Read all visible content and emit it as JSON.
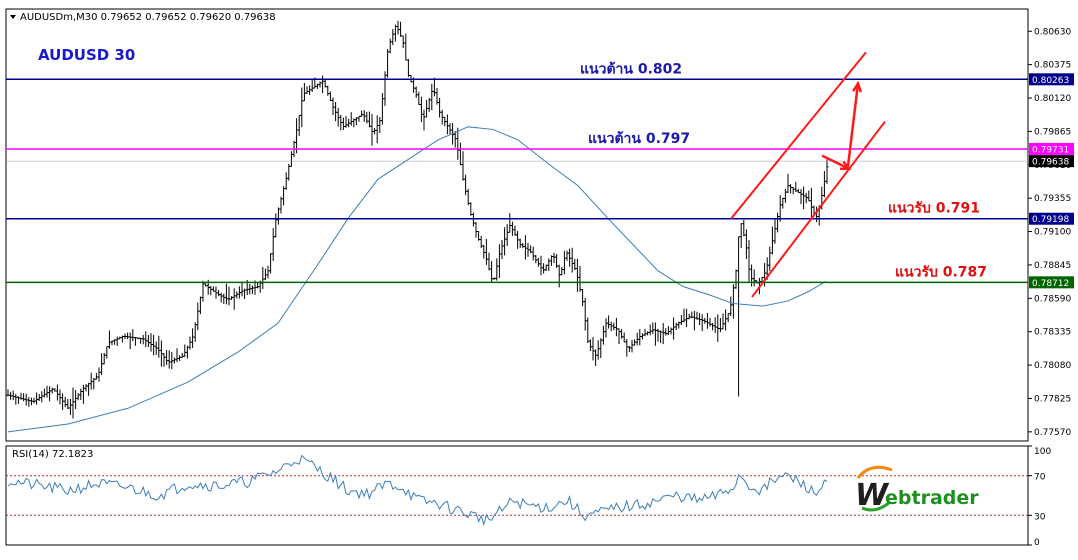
{
  "header": {
    "symbol_line": "AUDUSDm,M30  0.79652 0.79652 0.79620 0.79638",
    "chart_title": "AUDUSD 30"
  },
  "chart_data": [
    {
      "type": "line",
      "subtype": "ohlc-bar",
      "ylim": [
        0.775,
        0.808
      ],
      "y_ticks": [
        "0.80630",
        "0.80375",
        "0.80120",
        "0.79865",
        "0.79610",
        "0.79355",
        "0.79100",
        "0.78845",
        "0.78590",
        "0.78335",
        "0.78080",
        "0.77825",
        "0.77570"
      ],
      "price_path": [
        [
          0,
          0.7785
        ],
        [
          25,
          0.778
        ],
        [
          45,
          0.779
        ],
        [
          60,
          0.7775
        ],
        [
          75,
          0.779
        ],
        [
          90,
          0.78
        ],
        [
          100,
          0.7825
        ],
        [
          115,
          0.783
        ],
        [
          135,
          0.7828
        ],
        [
          150,
          0.782
        ],
        [
          160,
          0.781
        ],
        [
          175,
          0.7815
        ],
        [
          185,
          0.783
        ],
        [
          195,
          0.787
        ],
        [
          210,
          0.7862
        ],
        [
          220,
          0.7858
        ],
        [
          235,
          0.7865
        ],
        [
          250,
          0.7868
        ],
        [
          260,
          0.788
        ],
        [
          268,
          0.792
        ],
        [
          278,
          0.795
        ],
        [
          288,
          0.7985
        ],
        [
          295,
          0.8015
        ],
        [
          305,
          0.802
        ],
        [
          315,
          0.8025
        ],
        [
          325,
          0.8005
        ],
        [
          335,
          0.799
        ],
        [
          345,
          0.7995
        ],
        [
          355,
          0.8
        ],
        [
          365,
          0.7985
        ],
        [
          372,
          0.7995
        ],
        [
          380,
          0.805
        ],
        [
          388,
          0.8068
        ],
        [
          395,
          0.8055
        ],
        [
          400,
          0.803
        ],
        [
          408,
          0.8015
        ],
        [
          415,
          0.7995
        ],
        [
          425,
          0.802
        ],
        [
          432,
          0.8
        ],
        [
          440,
          0.799
        ],
        [
          448,
          0.798
        ],
        [
          455,
          0.795
        ],
        [
          462,
          0.7925
        ],
        [
          470,
          0.7905
        ],
        [
          478,
          0.789
        ],
        [
          485,
          0.787
        ],
        [
          492,
          0.7895
        ],
        [
          502,
          0.7915
        ],
        [
          512,
          0.79
        ],
        [
          522,
          0.7895
        ],
        [
          535,
          0.788
        ],
        [
          545,
          0.7893
        ],
        [
          552,
          0.7875
        ],
        [
          558,
          0.7895
        ],
        [
          568,
          0.788
        ],
        [
          575,
          0.7855
        ],
        [
          580,
          0.7825
        ],
        [
          588,
          0.7815
        ],
        [
          598,
          0.784
        ],
        [
          610,
          0.7835
        ],
        [
          620,
          0.782
        ],
        [
          632,
          0.783
        ],
        [
          645,
          0.7835
        ],
        [
          658,
          0.7832
        ],
        [
          670,
          0.784
        ],
        [
          682,
          0.7845
        ],
        [
          695,
          0.7842
        ],
        [
          712,
          0.7835
        ],
        [
          722,
          0.785
        ],
        [
          728,
          0.788
        ],
        [
          732,
          0.792
        ],
        [
          738,
          0.79
        ],
        [
          742,
          0.7875
        ],
        [
          750,
          0.787
        ],
        [
          758,
          0.788
        ],
        [
          765,
          0.7905
        ],
        [
          772,
          0.793
        ],
        [
          780,
          0.7945
        ],
        [
          790,
          0.794
        ],
        [
          800,
          0.7935
        ],
        [
          808,
          0.792
        ],
        [
          812,
          0.793
        ],
        [
          818,
          0.7955
        ],
        [
          820,
          0.79638
        ]
      ],
      "moving_average": [
        [
          0,
          0.7757
        ],
        [
          60,
          0.7763
        ],
        [
          120,
          0.7775
        ],
        [
          180,
          0.7795
        ],
        [
          230,
          0.7818
        ],
        [
          270,
          0.784
        ],
        [
          310,
          0.7885
        ],
        [
          340,
          0.792
        ],
        [
          370,
          0.795
        ],
        [
          400,
          0.7965
        ],
        [
          430,
          0.798
        ],
        [
          460,
          0.799
        ],
        [
          485,
          0.7988
        ],
        [
          510,
          0.798
        ],
        [
          540,
          0.7962
        ],
        [
          570,
          0.7945
        ],
        [
          600,
          0.792
        ],
        [
          625,
          0.79
        ],
        [
          650,
          0.788
        ],
        [
          675,
          0.7868
        ],
        [
          700,
          0.7862
        ],
        [
          725,
          0.7855
        ],
        [
          755,
          0.7853
        ],
        [
          780,
          0.7857
        ],
        [
          800,
          0.7864
        ],
        [
          818,
          0.7872
        ]
      ],
      "levels": [
        {
          "name": "resistance-0802",
          "value": 0.80263,
          "tag": "0.80263",
          "color": "#00008b",
          "label": "แนวต้าน 0.802",
          "label_color": "#1a1aa8"
        },
        {
          "name": "resistance-0797",
          "value": 0.79731,
          "tag": "0.79731",
          "color": "#ff00ff",
          "label": "แนวต้าน 0.797",
          "label_color": "#1a1aa8"
        },
        {
          "name": "support-0791",
          "value": 0.79198,
          "tag": "0.79198",
          "color": "#00008b",
          "label": "แนวรับ 0.791",
          "label_color": "#e01010"
        },
        {
          "name": "support-0787",
          "value": 0.78712,
          "tag": "0.78712",
          "color": "#006400",
          "label": "แนวรับ 0.787",
          "label_color": "#e01010"
        }
      ],
      "current_price_tag": "0.79638",
      "current_price": 0.79638,
      "channel_color": "#ff1a1a"
    },
    {
      "type": "line",
      "subtype": "oscillator",
      "label": "RSI(14) 72.1823",
      "ylim": [
        0,
        100
      ],
      "y_ticks": [
        "100",
        "70",
        "30",
        "0"
      ],
      "levels": [
        70,
        30
      ],
      "rsi_path": [
        [
          0,
          65
        ],
        [
          30,
          60
        ],
        [
          60,
          55
        ],
        [
          90,
          62
        ],
        [
          120,
          58
        ],
        [
          150,
          50
        ],
        [
          180,
          62
        ],
        [
          210,
          60
        ],
        [
          240,
          64
        ],
        [
          270,
          75
        ],
        [
          290,
          88
        ],
        [
          305,
          80
        ],
        [
          320,
          70
        ],
        [
          340,
          55
        ],
        [
          360,
          52
        ],
        [
          380,
          62
        ],
        [
          395,
          58
        ],
        [
          410,
          45
        ],
        [
          430,
          42
        ],
        [
          450,
          35
        ],
        [
          465,
          30
        ],
        [
          480,
          25
        ],
        [
          490,
          32
        ],
        [
          505,
          45
        ],
        [
          520,
          40
        ],
        [
          540,
          38
        ],
        [
          560,
          45
        ],
        [
          575,
          30
        ],
        [
          590,
          32
        ],
        [
          610,
          38
        ],
        [
          630,
          40
        ],
        [
          650,
          45
        ],
        [
          670,
          50
        ],
        [
          690,
          45
        ],
        [
          710,
          50
        ],
        [
          725,
          58
        ],
        [
          732,
          72
        ],
        [
          740,
          60
        ],
        [
          755,
          55
        ],
        [
          765,
          65
        ],
        [
          780,
          70
        ],
        [
          800,
          58
        ],
        [
          808,
          50
        ],
        [
          815,
          62
        ],
        [
          820,
          72
        ]
      ]
    }
  ],
  "brand": {
    "initial": "W",
    "rest": "ebtrader"
  }
}
